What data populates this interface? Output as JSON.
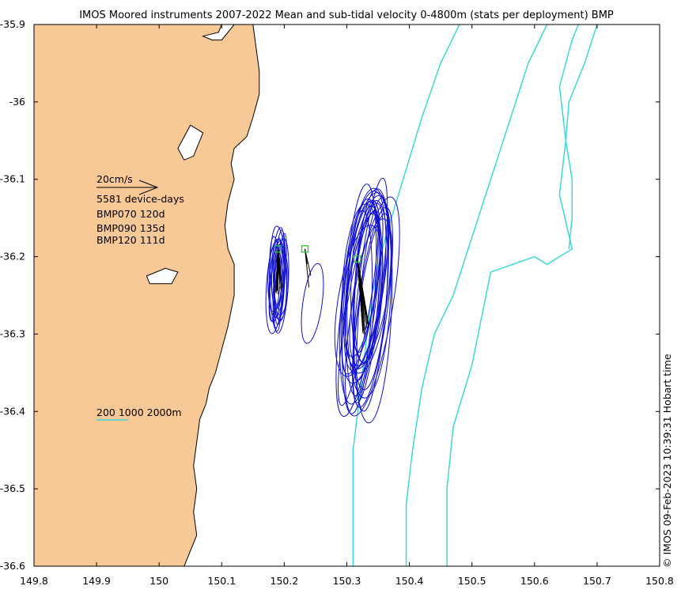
{
  "chart_data": {
    "type": "map",
    "title": "IMOS Moored instruments 2007-2022 Mean and sub-tidal velocity 0-4800m (stats per deployment) BMP",
    "side_label": "© IMOS 09-Feb-2023 10:39:31 Hobart time",
    "xlim": [
      149.8,
      150.8
    ],
    "ylim": [
      -36.6,
      -35.9
    ],
    "x_ticks": [
      149.8,
      149.9,
      150,
      150.1,
      150.2,
      150.3,
      150.4,
      150.5,
      150.6,
      150.7,
      150.8
    ],
    "x_tick_labels": [
      "149.8",
      "149.9",
      "150",
      "150.1",
      "150.2",
      "150.3",
      "150.4",
      "150.5",
      "150.6",
      "150.7",
      "150.8"
    ],
    "y_ticks": [
      -35.9,
      -36.0,
      -36.1,
      -36.2,
      -36.3,
      -36.4,
      -36.5,
      -36.6
    ],
    "y_tick_labels": [
      "-35.9",
      "-36",
      "-36.1",
      "-36.2",
      "-36.3",
      "-36.4",
      "-36.5",
      "-36.6"
    ],
    "scale_arrow_label": "20cm/s",
    "device_days_label": "5581 device-days",
    "deployments": [
      "BMP070 120d",
      "BMP090 135d",
      "BMP120 111d"
    ],
    "isobath_label": "200 1000 2000m",
    "colors": {
      "land": "#f8c896",
      "isobath": "#3cd8d8",
      "ellipse": "#1010d0",
      "mooring": "#2ec82e",
      "vector": "#000000"
    },
    "moorings": [
      {
        "lon": 150.19,
        "lat": -36.19
      },
      {
        "lon": 150.233,
        "lat": -36.19
      },
      {
        "lon": 150.317,
        "lat": -36.203
      }
    ],
    "coast": [
      [
        149.8,
        -35.9
      ],
      [
        150.1,
        -35.9
      ],
      [
        150.095,
        -35.91
      ],
      [
        150.07,
        -35.915
      ],
      [
        150.085,
        -35.92
      ],
      [
        150.1,
        -35.92
      ],
      [
        150.12,
        -35.9
      ],
      [
        150.15,
        -35.9
      ],
      [
        150.155,
        -35.93
      ],
      [
        150.16,
        -35.96
      ],
      [
        150.16,
        -35.99
      ],
      [
        150.15,
        -36.02
      ],
      [
        150.14,
        -36.045
      ],
      [
        150.12,
        -36.06
      ],
      [
        150.115,
        -36.08
      ],
      [
        150.12,
        -36.1
      ],
      [
        150.11,
        -36.13
      ],
      [
        150.105,
        -36.16
      ],
      [
        150.11,
        -36.19
      ],
      [
        150.12,
        -36.21
      ],
      [
        150.12,
        -36.25
      ],
      [
        150.11,
        -36.29
      ],
      [
        150.1,
        -36.32
      ],
      [
        150.09,
        -36.35
      ],
      [
        150.08,
        -36.37
      ],
      [
        150.075,
        -36.39
      ],
      [
        150.065,
        -36.41
      ],
      [
        150.06,
        -36.44
      ],
      [
        150.055,
        -36.47
      ],
      [
        150.06,
        -36.5
      ],
      [
        150.055,
        -36.53
      ],
      [
        150.06,
        -36.56
      ],
      [
        150.045,
        -36.59
      ],
      [
        150.04,
        -36.6
      ],
      [
        149.8,
        -36.6
      ]
    ],
    "islands": [
      [
        [
          150.03,
          -36.06
        ],
        [
          150.05,
          -36.03
        ],
        [
          150.07,
          -36.04
        ],
        [
          150.055,
          -36.07
        ],
        [
          150.04,
          -36.075
        ]
      ],
      [
        [
          149.98,
          -36.225
        ],
        [
          150.01,
          -36.215
        ],
        [
          150.03,
          -36.22
        ],
        [
          150.02,
          -36.235
        ],
        [
          149.985,
          -36.235
        ]
      ]
    ],
    "isobaths": [
      [
        [
          150.31,
          -36.6
        ],
        [
          150.31,
          -36.45
        ],
        [
          150.325,
          -36.35
        ],
        [
          150.34,
          -36.25
        ],
        [
          150.36,
          -36.18
        ],
        [
          150.39,
          -36.1
        ],
        [
          150.42,
          -36.02
        ],
        [
          150.45,
          -35.95
        ],
        [
          150.48,
          -35.9
        ]
      ],
      [
        [
          150.395,
          -36.6
        ],
        [
          150.395,
          -36.52
        ],
        [
          150.405,
          -36.45
        ],
        [
          150.42,
          -36.37
        ],
        [
          150.44,
          -36.3
        ],
        [
          150.47,
          -36.25
        ],
        [
          150.51,
          -36.15
        ],
        [
          150.55,
          -36.05
        ],
        [
          150.59,
          -35.95
        ],
        [
          150.62,
          -35.9
        ]
      ],
      [
        [
          150.46,
          -36.6
        ],
        [
          150.46,
          -36.5
        ],
        [
          150.47,
          -36.42
        ],
        [
          150.5,
          -36.34
        ],
        [
          150.53,
          -36.22
        ],
        [
          150.6,
          -36.2
        ],
        [
          150.62,
          -36.21
        ],
        [
          150.66,
          -36.19
        ],
        [
          150.64,
          -36.12
        ],
        [
          150.65,
          -36.05
        ],
        [
          150.64,
          -35.98
        ],
        [
          150.66,
          -35.92
        ],
        [
          150.67,
          -35.9
        ]
      ],
      [
        [
          150.7,
          -35.9
        ],
        [
          150.68,
          -35.95
        ],
        [
          150.655,
          -36.0
        ],
        [
          150.65,
          -36.05
        ],
        [
          150.66,
          -36.1
        ],
        [
          150.66,
          -36.15
        ],
        [
          150.655,
          -36.19
        ]
      ]
    ],
    "ellipses": [
      {
        "cx": 150.19,
        "cy": -36.23,
        "rx": 0.012,
        "ry": 0.07,
        "rot": 2,
        "count": 14
      },
      {
        "cx": 150.245,
        "cy": -36.27,
        "rx": 0.018,
        "ry": 0.08,
        "rot": 8,
        "count": 1
      },
      {
        "cx": 150.33,
        "cy": -36.25,
        "rx": 0.03,
        "ry": 0.14,
        "rot": 6,
        "count": 24
      }
    ],
    "vectors": [
      {
        "lon": 150.19,
        "lat": -36.19,
        "u": 0.002,
        "v": -0.06,
        "count": 30
      },
      {
        "lon": 150.233,
        "lat": -36.19,
        "u": 0.012,
        "v": -0.065,
        "count": 3
      },
      {
        "lon": 150.317,
        "lat": -36.203,
        "u": 0.015,
        "v": -0.1,
        "count": 40
      }
    ]
  }
}
